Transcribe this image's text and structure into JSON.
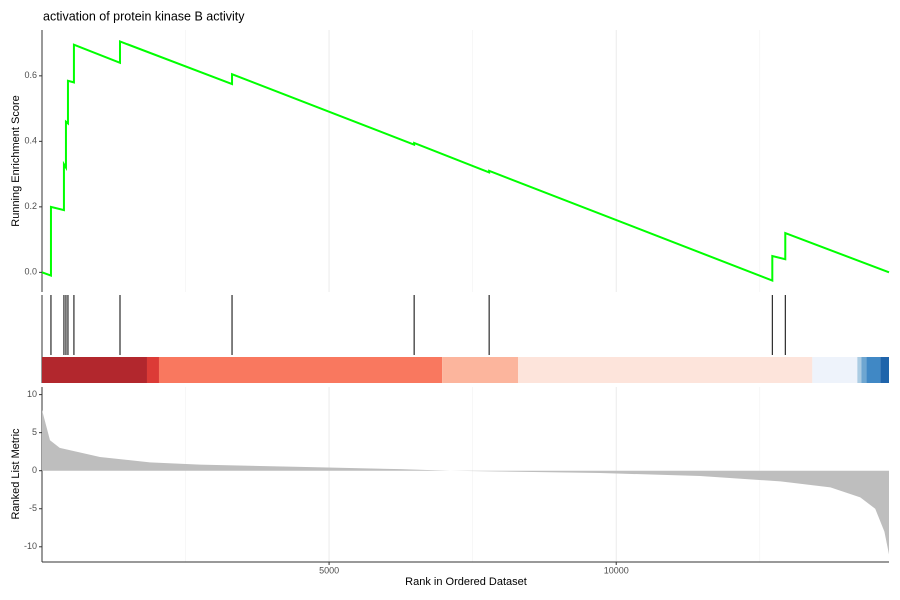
{
  "chart_data": [
    {
      "type": "line",
      "title": "activation of protein kinase B activity",
      "ylabel": "Running Enrichment Score",
      "xlim": [
        1,
        14750
      ],
      "ylim": [
        -0.06,
        0.74
      ],
      "yticks": [
        {
          "value": 0,
          "label": "0.0"
        },
        0.2,
        0.4,
        0.6
      ],
      "color": "#00ff00",
      "grid": true,
      "x": [
        1,
        157,
        157,
        383,
        383,
        418,
        418,
        453,
        453,
        557,
        557,
        1359,
        1359,
        3310,
        3310,
        6481,
        6481,
        7787,
        7787,
        12718,
        12718,
        12944,
        12944,
        14750
      ],
      "values": [
        0,
        -0.01,
        0.2,
        0.19,
        0.33,
        0.32,
        0.46,
        0.455,
        0.585,
        0.58,
        0.695,
        0.64,
        0.705,
        0.575,
        0.605,
        0.39,
        0.395,
        0.305,
        0.31,
        -0.025,
        0.05,
        0.04,
        0.12,
        0
      ]
    },
    {
      "type": "rug",
      "xlim": [
        1,
        14750
      ],
      "hits": [
        157,
        383,
        418,
        453,
        557,
        1359,
        3310,
        6481,
        7787,
        12718,
        12944
      ],
      "color": "#000000",
      "band_edges": [
        1,
        1829,
        2038,
        6969,
        8293,
        13415,
        14199,
        14269,
        14355,
        14599,
        14750
      ],
      "band_colors": [
        "#b2272d",
        "#dc3b36",
        "#f9785f",
        "#fcb59d",
        "#fde4db",
        "#eef3fb",
        "#abcce3",
        "#6ea6d1",
        "#4088c5",
        "#1f64ab"
      ]
    },
    {
      "type": "area",
      "ylabel": "Ranked List Metric",
      "xlabel": "Rank in Ordered Dataset",
      "xlim": [
        1,
        14750
      ],
      "ylim": [
        -12,
        11
      ],
      "xticks": [
        5000,
        10000
      ],
      "x_minor_ticks": [
        2500,
        7500,
        12500
      ],
      "yticks": [
        10,
        5,
        0,
        -5,
        -10
      ],
      "color": "#bebebe",
      "grid": true,
      "x": [
        1,
        140,
        310,
        1010,
        1880,
        2750,
        4500,
        6240,
        7110,
        9720,
        11460,
        12860,
        13730,
        14250,
        14510,
        14670,
        14750
      ],
      "values": [
        8,
        4,
        3,
        1.8,
        1.1,
        0.8,
        0.5,
        0.2,
        0,
        -0.3,
        -0.7,
        -1.4,
        -2.2,
        -3.5,
        -5,
        -8,
        -11
      ]
    }
  ]
}
